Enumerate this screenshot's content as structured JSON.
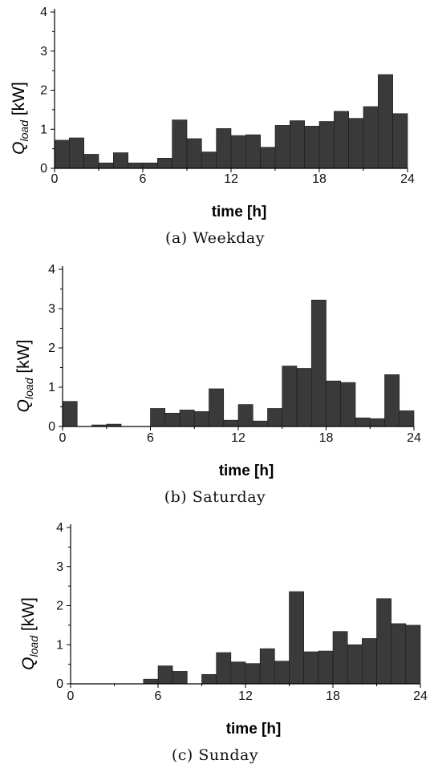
{
  "chart_data": [
    {
      "type": "bar",
      "caption": "(a) Weekday",
      "xlabel": "time [h]",
      "ylabel": {
        "main": "Q",
        "sub": "load",
        "unit": " [kW]"
      },
      "xlim": [
        0,
        24
      ],
      "ylim": [
        0,
        4
      ],
      "xticks": [
        "0",
        "6",
        "12",
        "18",
        "24"
      ],
      "yticks": [
        "0",
        "1",
        "2",
        "3",
        "4"
      ],
      "bar_width_h": 1,
      "x": [
        0,
        1,
        2,
        3,
        4,
        5,
        6,
        7,
        8,
        9,
        10,
        11,
        12,
        13,
        14,
        15,
        16,
        17,
        18,
        19,
        20,
        21,
        22,
        23
      ],
      "values": [
        0.72,
        0.78,
        0.36,
        0.14,
        0.4,
        0.14,
        0.14,
        0.26,
        1.24,
        0.76,
        0.42,
        1.02,
        0.84,
        0.86,
        0.54,
        1.1,
        1.22,
        1.08,
        1.2,
        1.46,
        1.28,
        1.58,
        2.4,
        1.4
      ]
    },
    {
      "type": "bar",
      "caption": "(b) Saturday",
      "xlabel": "time [h]",
      "ylabel": {
        "main": "Q",
        "sub": "load",
        "unit": " [kW]"
      },
      "xlim": [
        0,
        24
      ],
      "ylim": [
        0,
        4
      ],
      "xticks": [
        "0",
        "6",
        "12",
        "18",
        "24"
      ],
      "yticks": [
        "0",
        "1",
        "2",
        "3",
        "4"
      ],
      "bar_width_h": 1,
      "x": [
        0,
        1,
        2,
        3,
        4,
        5,
        6,
        7,
        8,
        9,
        10,
        11,
        12,
        13,
        14,
        15,
        16,
        17,
        18,
        19,
        20,
        21,
        22,
        23
      ],
      "values": [
        0.64,
        0.0,
        0.04,
        0.06,
        0.0,
        0.0,
        0.46,
        0.34,
        0.42,
        0.38,
        0.96,
        0.16,
        0.56,
        0.14,
        0.46,
        1.54,
        1.48,
        3.22,
        1.16,
        1.12,
        0.22,
        0.2,
        1.32,
        0.4
      ]
    },
    {
      "type": "bar",
      "caption": "(c) Sunday",
      "xlabel": "time [h]",
      "ylabel": {
        "main": "Q",
        "sub": "load",
        "unit": " [kW]"
      },
      "xlim": [
        0,
        24
      ],
      "ylim": [
        0,
        4
      ],
      "xticks": [
        "0",
        "6",
        "12",
        "18",
        "24"
      ],
      "yticks": [
        "0",
        "1",
        "2",
        "3",
        "4"
      ],
      "bar_width_h": 1,
      "x": [
        0,
        1,
        2,
        3,
        4,
        5,
        6,
        7,
        8,
        9,
        10,
        11,
        12,
        13,
        14,
        15,
        16,
        17,
        18,
        19,
        20,
        21,
        22,
        23
      ],
      "values": [
        0.0,
        0.0,
        0.0,
        0.0,
        0.0,
        0.12,
        0.46,
        0.32,
        0.0,
        0.24,
        0.8,
        0.56,
        0.52,
        0.9,
        0.58,
        2.36,
        0.82,
        0.84,
        1.34,
        1.0,
        1.16,
        2.18,
        1.54,
        1.5
      ]
    }
  ]
}
